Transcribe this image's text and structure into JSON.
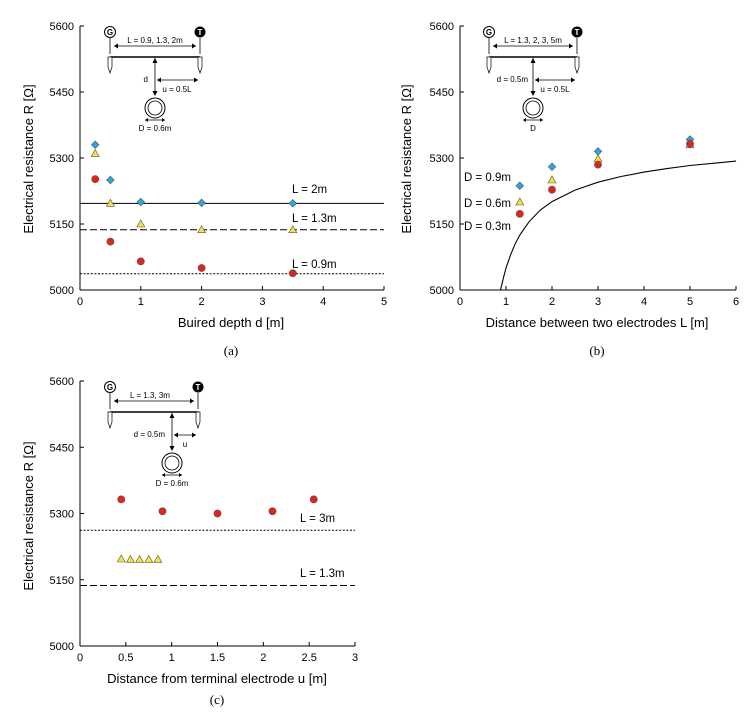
{
  "chart_data": [
    {
      "id": "a",
      "type": "scatter",
      "caption": "(a)",
      "xlabel": "Buired depth d [m]",
      "ylabel": "Electrical resistance R [Ω]",
      "xlim": [
        0,
        5
      ],
      "ylim": [
        5000,
        5600
      ],
      "xticks": [
        0,
        1,
        2,
        3,
        4,
        5
      ],
      "yticks": [
        5000,
        5150,
        5300,
        5450,
        5600
      ],
      "colors": {
        "blue": "#29a8e0",
        "yellow": "#f6e23a",
        "red": "#e2231a"
      },
      "series": [
        {
          "marker": "diamond",
          "color": "blue",
          "x": [
            0.25,
            0.5,
            1.0,
            2.0,
            3.5
          ],
          "y": [
            5330,
            5250,
            5200,
            5198,
            5197
          ]
        },
        {
          "marker": "triangle",
          "color": "yellow",
          "x": [
            0.25,
            0.5,
            1.0,
            2.0,
            3.5
          ],
          "y": [
            5310,
            5197,
            5150,
            5137,
            5137
          ]
        },
        {
          "marker": "circle",
          "color": "red",
          "x": [
            0.25,
            0.5,
            1.0,
            2.0,
            3.5
          ],
          "y": [
            5252,
            5110,
            5065,
            5050,
            5038
          ]
        }
      ],
      "hlines": [
        {
          "y": 5197,
          "style": "solid",
          "label": "L = 2m"
        },
        {
          "y": 5137,
          "style": "dashed",
          "label": "L = 1.3m"
        },
        {
          "y": 5037,
          "style": "dotted",
          "label": "L = 0.9m"
        }
      ],
      "schematic": {
        "G": "G",
        "T": "T",
        "L": "L = 0.9, 1.3, 2m",
        "d": "d",
        "u": "u = 0.5L",
        "D": "D = 0.6m"
      }
    },
    {
      "id": "b",
      "type": "scatter",
      "caption": "(b)",
      "xlabel": "Distance between two electrodes L [m]",
      "ylabel": "Electrical resistance R [Ω]",
      "xlim": [
        0,
        6
      ],
      "ylim": [
        5000,
        5600
      ],
      "xticks": [
        0,
        1,
        2,
        3,
        4,
        5,
        6
      ],
      "yticks": [
        5000,
        5150,
        5300,
        5450,
        5600
      ],
      "series": [
        {
          "marker": "diamond",
          "color": "blue",
          "x": [
            1.3,
            2.0,
            3.0,
            5.0
          ],
          "y": [
            5237,
            5280,
            5315,
            5342
          ]
        },
        {
          "marker": "triangle",
          "color": "yellow",
          "x": [
            1.3,
            2.0,
            3.0,
            5.0
          ],
          "y": [
            5200,
            5250,
            5298,
            5330
          ]
        },
        {
          "marker": "circle",
          "color": "red",
          "x": [
            1.3,
            2.0,
            3.0,
            5.0
          ],
          "y": [
            5173,
            5228,
            5285,
            5332
          ]
        }
      ],
      "curve": {
        "style": "solid",
        "x": [
          0.88,
          0.95,
          1.0,
          1.1,
          1.2,
          1.3,
          1.5,
          1.75,
          2.0,
          2.5,
          3.0,
          3.5,
          4.0,
          4.5,
          5.0,
          5.5,
          6.0
        ],
        "y": [
          5000,
          5030,
          5050,
          5080,
          5105,
          5125,
          5155,
          5182,
          5201,
          5227,
          5245,
          5258,
          5268,
          5276,
          5283,
          5288,
          5293
        ]
      },
      "labels": [
        "D = 0.9m",
        "D = 0.6m",
        "D = 0.3m"
      ],
      "schematic": {
        "G": "G",
        "T": "T",
        "L": "L = 1.3, 2, 3, 5m",
        "d": "d = 0.5m",
        "u": "u = 0.5L",
        "D": "D"
      }
    },
    {
      "id": "c",
      "type": "scatter",
      "caption": "(c)",
      "xlabel": "Distance from terminal electrode u [m]",
      "ylabel": "Electrical resistance R [Ω]",
      "xlim": [
        0,
        3
      ],
      "ylim": [
        5000,
        5600
      ],
      "xticks": [
        0,
        0.5,
        1,
        1.5,
        2,
        2.5,
        3
      ],
      "yticks": [
        5000,
        5150,
        5300,
        5450,
        5600
      ],
      "series": [
        {
          "marker": "circle",
          "color": "red",
          "x": [
            0.45,
            0.9,
            1.5,
            2.1,
            2.55
          ],
          "y": [
            5332,
            5305,
            5300,
            5305,
            5332
          ]
        },
        {
          "marker": "triangle",
          "color": "yellow",
          "x": [
            0.45,
            0.55,
            0.65,
            0.75,
            0.85
          ],
          "y": [
            5197,
            5196,
            5196,
            5196,
            5196
          ]
        }
      ],
      "hlines": [
        {
          "y": 5262,
          "style": "dotted",
          "label": "L = 3m"
        },
        {
          "y": 5137,
          "style": "dashed",
          "label": "L = 1.3m"
        }
      ],
      "schematic": {
        "G": "G",
        "T": "T",
        "L": "L = 1.3, 3m",
        "d": "d = 0.5m",
        "u": "u",
        "D": "D = 0.6m"
      }
    }
  ]
}
